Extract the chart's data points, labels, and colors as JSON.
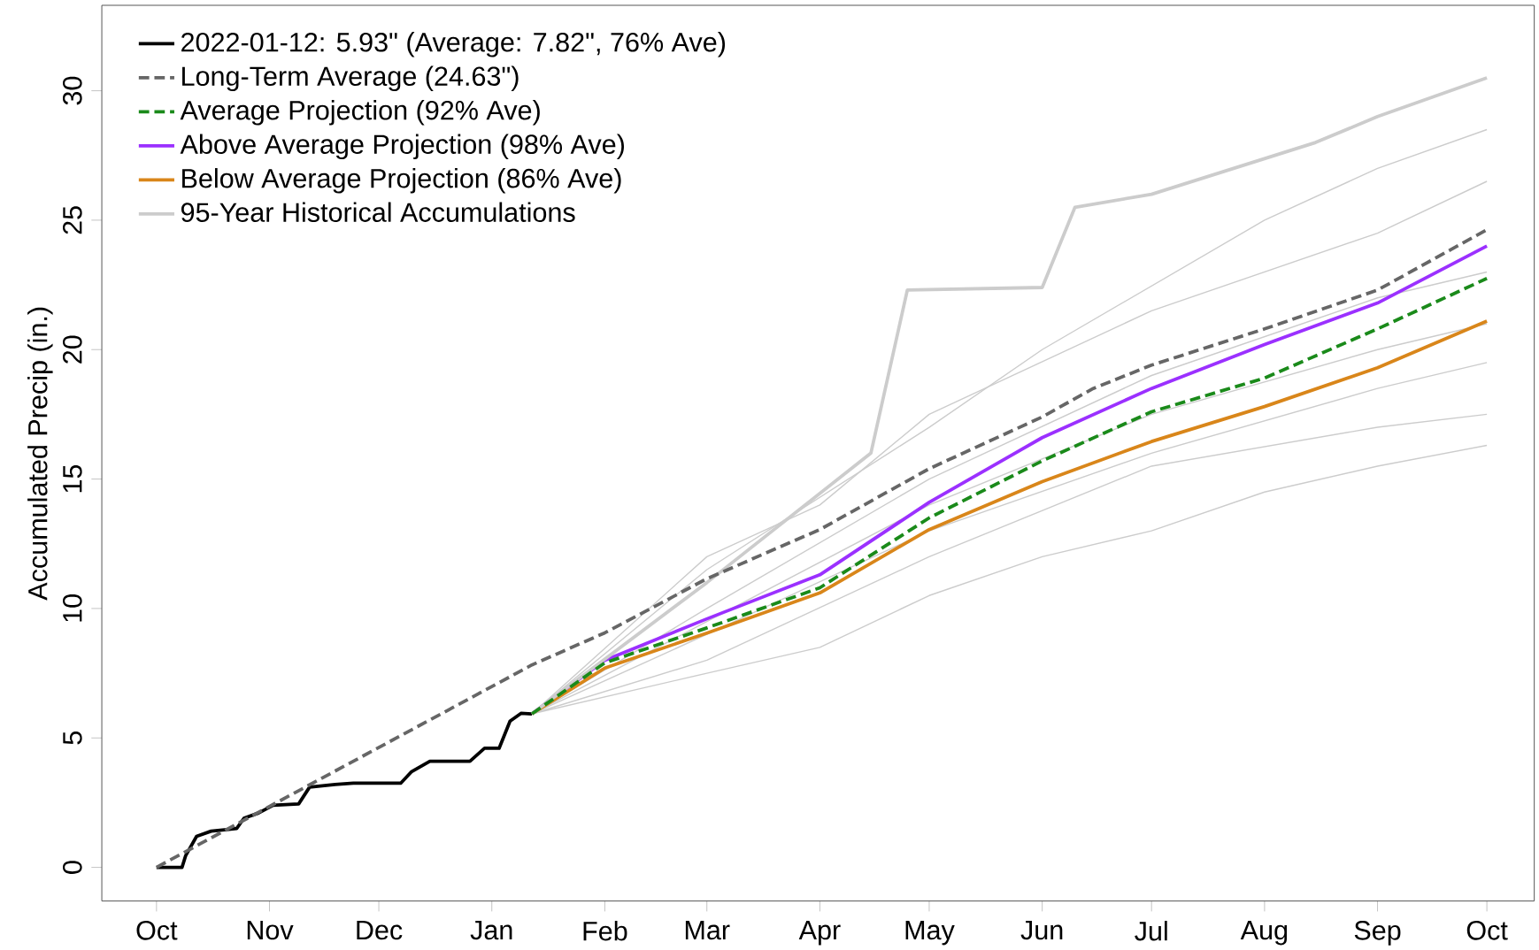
{
  "chart_data": {
    "type": "line",
    "ylabel": "Accumulated Precip (in.)",
    "xlim": [
      "2021-09-16",
      "2022-10-14"
    ],
    "ylim": [
      -1.3,
      33.3
    ],
    "xticks": [
      {
        "value": "2021-10-01",
        "label": "Oct"
      },
      {
        "value": "2021-11-01",
        "label": "Nov"
      },
      {
        "value": "2021-12-01",
        "label": "Dec"
      },
      {
        "value": "2022-01-01",
        "label": "Jan"
      },
      {
        "value": "2022-02-01",
        "label": "Feb"
      },
      {
        "value": "2022-03-01",
        "label": "Mar"
      },
      {
        "value": "2022-04-01",
        "label": "Apr"
      },
      {
        "value": "2022-05-01",
        "label": "May"
      },
      {
        "value": "2022-06-01",
        "label": "Jun"
      },
      {
        "value": "2022-07-01",
        "label": "Jul"
      },
      {
        "value": "2022-08-01",
        "label": "Aug"
      },
      {
        "value": "2022-09-01",
        "label": "Sep"
      },
      {
        "value": "2022-10-01",
        "label": "Oct"
      }
    ],
    "yticks": [
      0,
      5,
      10,
      15,
      20,
      25,
      30
    ],
    "grid": false,
    "legend": "top left",
    "series": [
      {
        "name": "2022-01-12: 5.93\" (Average: 7.82\", 76% Ave)",
        "color": "#000000",
        "line_style": "solid",
        "x": [
          "2021-10-01",
          "2021-10-08",
          "2021-10-09",
          "2021-10-12",
          "2021-10-16",
          "2021-10-23",
          "2021-10-25",
          "2021-10-29",
          "2021-11-02",
          "2021-11-09",
          "2021-11-12",
          "2021-11-19",
          "2021-11-24",
          "2021-12-07",
          "2021-12-10",
          "2021-12-15",
          "2021-12-26",
          "2021-12-30",
          "2022-01-03",
          "2022-01-06",
          "2022-01-09",
          "2022-01-12"
        ],
        "values": [
          0,
          0,
          0.45,
          1.2,
          1.4,
          1.5,
          1.9,
          2.1,
          2.4,
          2.45,
          3.1,
          3.2,
          3.25,
          3.25,
          3.7,
          4.1,
          4.1,
          4.6,
          4.6,
          5.65,
          5.95,
          5.93
        ]
      },
      {
        "name": "Long-Term Average (24.63\")",
        "color": "#666666",
        "line_style": "dashed",
        "x": [
          "2021-10-01",
          "2022-01-12",
          "2022-02-01",
          "2022-03-01",
          "2022-04-01",
          "2022-05-01",
          "2022-06-01",
          "2022-06-15",
          "2022-07-01",
          "2022-08-01",
          "2022-09-01",
          "2022-10-01"
        ],
        "values": [
          0,
          7.82,
          9.06,
          11.15,
          13.05,
          15.4,
          17.4,
          18.5,
          19.4,
          20.8,
          22.3,
          24.63
        ]
      },
      {
        "name": "Average Projection (92% Ave)",
        "color": "#1a8a1a",
        "line_style": "dashed",
        "x": [
          "2022-01-12",
          "2022-02-01",
          "2022-03-01",
          "2022-04-01",
          "2022-05-01",
          "2022-06-01",
          "2022-07-01",
          "2022-08-01",
          "2022-09-01",
          "2022-10-01"
        ],
        "values": [
          5.93,
          7.9,
          9.25,
          10.8,
          13.5,
          15.7,
          17.6,
          18.9,
          20.8,
          22.75
        ]
      },
      {
        "name": "Above Average Projection (98% Ave)",
        "color": "#9b30ff",
        "line_style": "solid",
        "x": [
          "2022-01-12",
          "2022-02-01",
          "2022-03-01",
          "2022-04-01",
          "2022-05-01",
          "2022-06-01",
          "2022-07-01",
          "2022-08-01",
          "2022-09-01",
          "2022-10-01"
        ],
        "values": [
          5.93,
          8.0,
          9.6,
          11.3,
          14.1,
          16.6,
          18.5,
          20.2,
          21.8,
          24.0
        ]
      },
      {
        "name": "Below Average Projection (86% Ave)",
        "color": "#d9861a",
        "line_style": "solid",
        "x": [
          "2022-01-12",
          "2022-02-01",
          "2022-03-01",
          "2022-04-01",
          "2022-05-01",
          "2022-06-01",
          "2022-07-01",
          "2022-08-01",
          "2022-09-01",
          "2022-10-01"
        ],
        "values": [
          5.93,
          7.7,
          9.05,
          10.6,
          13.05,
          14.9,
          16.45,
          17.8,
          19.3,
          21.1
        ]
      },
      {
        "name": "95-Year Historical Accumulations",
        "color": "#cccccc",
        "line_style": "solid",
        "x": [
          "2022-01-12",
          "2022-03-01",
          "2022-04-15",
          "2022-04-25",
          "2022-06-01",
          "2022-06-10",
          "2022-07-01",
          "2022-08-15",
          "2022-09-01",
          "2022-10-01"
        ],
        "values": [
          5.93,
          11,
          16,
          22.3,
          22.4,
          25.5,
          26,
          28,
          29,
          30.5
        ]
      },
      {
        "color": "#cccccc",
        "line_style": "solid",
        "x": [
          "2022-01-12",
          "2022-03-01",
          "2022-05-01",
          "2022-06-01",
          "2022-08-01",
          "2022-09-01",
          "2022-10-01"
        ],
        "values": [
          5.93,
          11.5,
          17,
          20,
          25,
          27,
          28.5
        ]
      },
      {
        "color": "#cccccc",
        "line_style": "solid",
        "x": [
          "2022-01-12",
          "2022-03-01",
          "2022-04-01",
          "2022-05-01",
          "2022-06-01",
          "2022-07-01",
          "2022-08-01",
          "2022-09-01",
          "2022-10-01"
        ],
        "values": [
          5.93,
          7.5,
          8.5,
          10.5,
          12,
          13,
          14.5,
          15.5,
          16.3
        ]
      },
      {
        "color": "#cccccc",
        "line_style": "solid",
        "x": [
          "2022-01-12",
          "2022-03-01",
          "2022-05-01",
          "2022-07-01",
          "2022-09-01",
          "2022-10-01"
        ],
        "values": [
          5.93,
          9,
          13,
          16,
          18.5,
          19.5
        ]
      },
      {
        "color": "#cccccc",
        "line_style": "solid",
        "x": [
          "2022-01-12",
          "2022-03-01",
          "2022-05-01",
          "2022-07-01",
          "2022-09-01",
          "2022-10-01"
        ],
        "values": [
          5.93,
          10,
          15,
          19,
          22,
          23
        ]
      },
      {
        "color": "#cccccc",
        "line_style": "solid",
        "x": [
          "2022-01-12",
          "2022-03-01",
          "2022-05-01",
          "2022-07-01",
          "2022-09-01",
          "2022-10-01"
        ],
        "values": [
          5.93,
          8,
          12,
          15.5,
          17,
          17.5
        ]
      },
      {
        "color": "#cccccc",
        "line_style": "solid",
        "x": [
          "2022-01-12",
          "2022-03-01",
          "2022-05-01",
          "2022-07-01",
          "2022-09-01",
          "2022-10-01"
        ],
        "values": [
          5.93,
          9.5,
          14,
          17.5,
          20,
          21
        ]
      },
      {
        "color": "#cccccc",
        "line_style": "solid",
        "x": [
          "2022-01-12",
          "2022-03-01",
          "2022-04-01",
          "2022-05-01",
          "2022-07-01",
          "2022-09-01",
          "2022-10-01"
        ],
        "values": [
          5.93,
          12,
          14,
          17.5,
          21.5,
          24.5,
          26.5
        ]
      }
    ]
  }
}
